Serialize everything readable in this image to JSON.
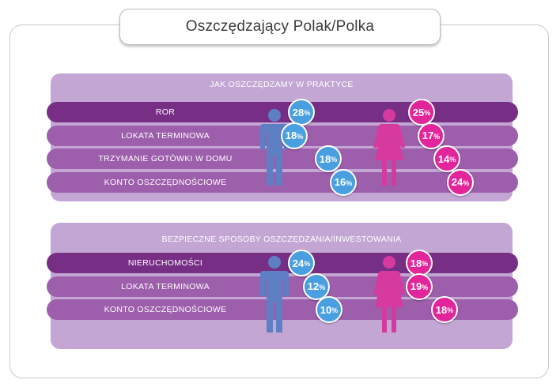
{
  "title": "Oszczędzający Polak/Polka",
  "colors": {
    "male": "#4a9fe0",
    "female": "#e2259a",
    "panel": "#c3a6d4",
    "bar_dark": "#772f86",
    "bar_light": "#9d5eab",
    "male_figure": "#5f7fc4",
    "female_figure": "#d63a9e"
  },
  "chart_data": [
    {
      "type": "table",
      "title": "JAK OSZCZĘDZAMY W PRAKTYCE",
      "series": [
        {
          "name": "male-icon",
          "values": [
            28,
            18,
            18,
            16
          ]
        },
        {
          "name": "female-icon",
          "values": [
            25,
            17,
            14,
            24
          ]
        }
      ],
      "categories": [
        "ROR",
        "LOKATA TERMINOWA",
        "TRZYMANIE GOTÓWKI W DOMU",
        "KONTO OSZCZĘDNOŚCIOWE"
      ],
      "unit": "%"
    },
    {
      "type": "table",
      "title": "BEZPIECZNE SPOSOBY OSZCZĘDZANIA/INWESTOWANIA",
      "series": [
        {
          "name": "male-icon",
          "values": [
            24,
            12,
            10
          ]
        },
        {
          "name": "female-icon",
          "values": [
            18,
            19,
            18
          ]
        }
      ],
      "categories": [
        "NIERUCHOMOŚCI",
        "LOKATA TERMINOWA",
        "KONTO OSZCZĘDNOŚCIOWE"
      ],
      "unit": "%"
    }
  ]
}
